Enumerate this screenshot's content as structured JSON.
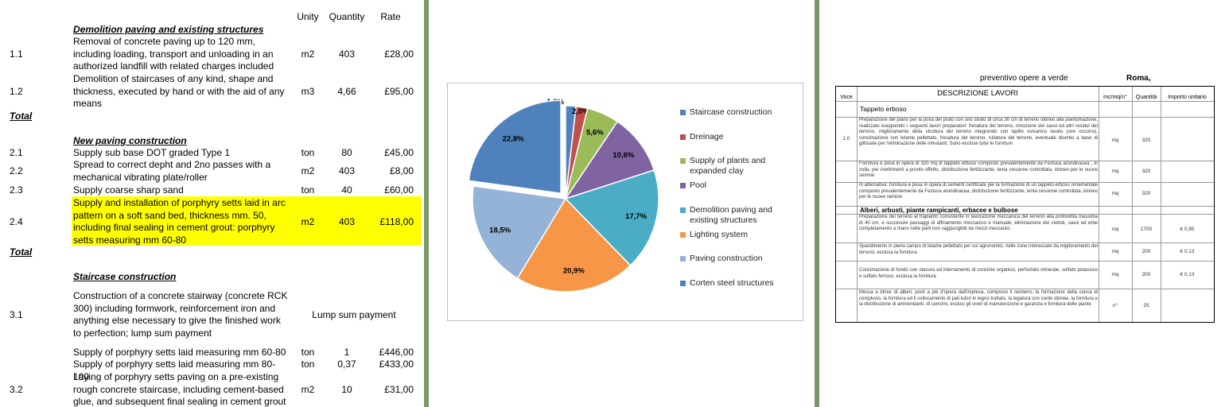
{
  "bill": {
    "headers": {
      "unit": "Unity",
      "qty": "Quantity",
      "rate": "Rate"
    },
    "sections": [
      {
        "title": "Demolition paving and existing structures"
      },
      {
        "title": "New paving construction"
      },
      {
        "title": "Staircase construction"
      }
    ],
    "rows": [
      {
        "num": "1.1",
        "desc": "Removal of concrete paving up to 120 mm, including loading, transport and unloading in an authorized landfill with related charges included",
        "unit": "m2",
        "qty": "403",
        "rate": "£28,00"
      },
      {
        "num": "1.2",
        "desc": "Demolition of staircases of any kind, shape and thickness, executed by hand or with the aid of any means",
        "unit": "m3",
        "qty": "4,66",
        "rate": "£95,00"
      },
      {
        "num": "2.1",
        "desc": "Supply sub base DOT graded Type 1",
        "unit": "ton",
        "qty": "80",
        "rate": "£45,00"
      },
      {
        "num": "2.2",
        "desc": "Spread to correct depht and 2no passes with a mechanical vibrating plate/roller",
        "unit": "m2",
        "qty": "403",
        "rate": "£8,00"
      },
      {
        "num": "2.3",
        "desc": "Supply coarse sharp sand",
        "unit": "ton",
        "qty": "40",
        "rate": "£60,00"
      },
      {
        "num": "2.4",
        "desc": "Supply and installation of porphyry setts laid in arc pattern on a soft sand bed, thickness mm. 50, including final sealing in cement grout: porphyry setts measuring mm 60-80",
        "unit": "m2",
        "qty": "403",
        "rate": "£118,00"
      },
      {
        "num": "3.1",
        "desc": "Construction of a  concrete stairway (concrete RCK 300) including formwork, reinforcement iron and anything else necessary to give the finished work to perfection; lump sum payment",
        "lump": "Lump sum payment"
      },
      {
        "num": "",
        "desc": "Supply of porphyry setts laid measuring mm 60-80",
        "unit": "ton",
        "qty": "1",
        "rate": "£446,00"
      },
      {
        "num": "",
        "desc": "Supply of porphyry setts laid measuring mm 80-100",
        "unit": "ton",
        "qty": "0,37",
        "rate": "£433,00"
      },
      {
        "num": "3.2",
        "desc": "Laying of porphyry setts paving on a pre-existing rough concrete staircase, including cement-based glue, and subsequent final sealing in cement grout",
        "unit": "m2",
        "qty": "10",
        "rate": "£31,00"
      }
    ],
    "total_label": "Total",
    "highlight_color": "#ffff00"
  },
  "chart_data": {
    "type": "pie",
    "labels": [
      "Staircase construction",
      "Dreinage",
      "Supply of plants and expanded clay",
      "Pool",
      "Demolition paving and existing structures",
      "Lighting system",
      "Paving construction",
      "Corten steel structures"
    ],
    "values": [
      1.8,
      2.0,
      5.6,
      10.6,
      17.7,
      20.9,
      18.5,
      22.8
    ],
    "value_labels": [
      "1,8%",
      "2,0%",
      "5,6%",
      "10,6%",
      "17,7%",
      "20,9%",
      "18,5%",
      "22,8%"
    ],
    "colors": [
      "#4f81bd",
      "#c0504d",
      "#9bbb59",
      "#8064a2",
      "#4bacc6",
      "#f79646",
      "#95b3d7",
      "#4f81bd"
    ],
    "exploded": [
      false,
      false,
      false,
      false,
      false,
      false,
      false,
      true
    ],
    "legend_position": "right"
  },
  "quote": {
    "title": "preventivo opere a verde",
    "city": "Roma,",
    "headers": {
      "voce": "Voce",
      "desc": "DESCRIZIONE LAVORI",
      "unit": "mc/mq/n°",
      "qty": "Quantità",
      "price": "Importo unitario"
    },
    "section1": "Tappeto erboso",
    "section2": "Alberi, arbusti, piante rampicanti, erbacee e bulbose",
    "voce": "1.0",
    "items": [
      {
        "text": "Preparazione del piano per la posa del prato con uno strato di circa 30 cm di terreno idoneo alla piantumazione, realizzato eseguendo i seguenti lavori preparatori: fresatura del terreno, rimozione dei sassi ed altri residui del terreno, miglioramento della struttura del terreno integrando con lapillo vulcanico lavato (ove occorre), concimazione con letame pellettato, fresatura del terreno, rullatura del terreno, eventuale diserbo a base di glifosate per l'eliminazione delle infestanti. Sono escluse tutte le forniture",
        "unit": "mq",
        "qty": "320",
        "price": ""
      },
      {
        "text": "Fornitura e posa in opera di 320 mq di tappeto erboso composto prevalentemente da Festuca arundinacea , in zolla, per inerbimenti a pronto effetto, distribuzione fertilizzante, lenta cessione controllata, idoneo per le nuove semine",
        "unit": "mq",
        "qty": "320",
        "price": ""
      },
      {
        "text": "In alternativa: fornitura e posa in opera di sementi certificate per la formazione di un tappeto erboso ornamentale composto prevalentemente da Festuca arundinacea, distribuzione fertilizzante, lenta cessione controllata, idoneo per le nuove semine",
        "unit": "mq",
        "qty": "320",
        "price": ""
      },
      {
        "text": "Preparazione del terreno al trapianto consistente in lavorazione meccanica del terreno alla profondità massima di 40 cm, e successivi passaggi di affinamento meccanico e manuale, eliminazione dei ciottoli, sassi ed erbe completamento a mano nelle parti non raggiungibili da mezzi meccanici",
        "unit": "mq",
        "qty": "1700",
        "price": "€ 0,95"
      },
      {
        "text": "Spandimento in pieno campo di letame pellettato per usi agronomici, nelle zone interessate da miglioramento del terreno, esclusa la fornitura",
        "unit": "mq",
        "qty": "200",
        "price": "€ 0,13"
      },
      {
        "text": "Concimazione di fondo con  stesura ed interramento di concime organico, perfosfato minerale, solfato potassico e solfato ferroso, esclusa la fornitura",
        "unit": "mq",
        "qty": "200",
        "price": "€ 0,13"
      },
      {
        "text": "Messa a dimor di alberi, posti a piè d'opera dall'impresa, compreso il reinterro, la formazione della conca di compluvio, la fornitura ed il collocamento di pali tutori in legno trattato, la legatura con corde idonee, la fornitura e la distribuzione di ammendanti, di concimi, esclusi gli oneri di manutenzione e garanzia e fornitura delle piante",
        "unit": "n°",
        "qty": "25",
        "price": ""
      }
    ]
  }
}
